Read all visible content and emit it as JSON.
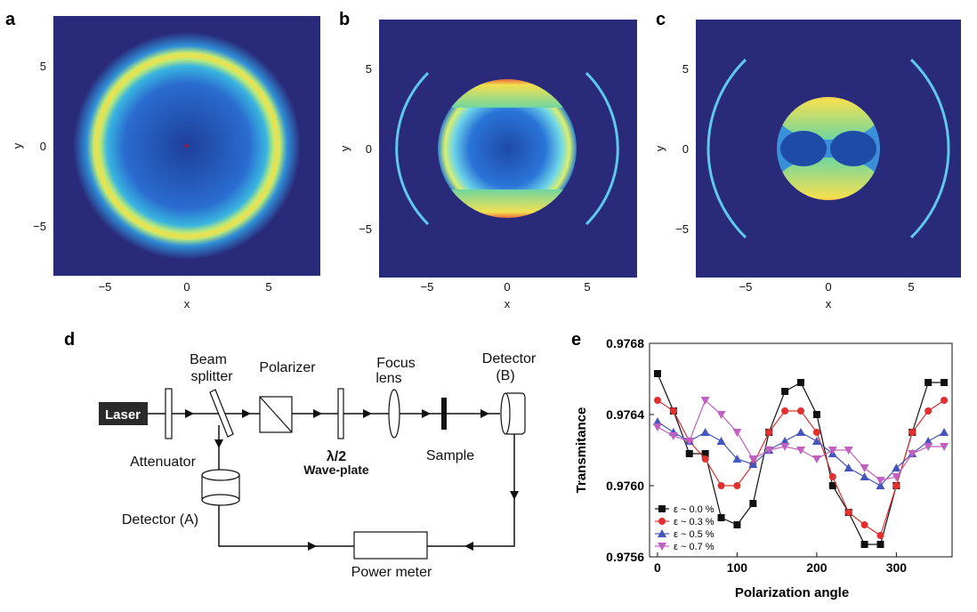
{
  "panels": {
    "a": {
      "label": "a",
      "xticks": [
        "−5",
        "0",
        "5"
      ],
      "yticks": [
        "5",
        "0",
        "−5"
      ],
      "xlabel": "x",
      "ylabel": "y"
    },
    "b": {
      "label": "b",
      "xticks": [
        "−5",
        "0",
        "5"
      ],
      "yticks": [
        "5",
        "0",
        "−5"
      ],
      "xlabel": "x",
      "ylabel": "y"
    },
    "c": {
      "label": "c",
      "xticks": [
        "−5",
        "0",
        "5"
      ],
      "yticks": [
        "5",
        "0",
        "−5"
      ],
      "xlabel": "x",
      "ylabel": "y"
    },
    "d": {
      "label": "d",
      "laser": "Laser",
      "beam_splitter_1": "Beam",
      "beam_splitter_2": "splitter",
      "polarizer": "Polarizer",
      "focus_lens_1": "Focus",
      "focus_lens_2": "lens",
      "detector_b_1": "Detector",
      "detector_b_2": "(B)",
      "attenuator": "Attenuator",
      "waveplate_1": "λ/2",
      "waveplate_2": "Wave-plate",
      "sample": "Sample",
      "detector_a": "Detector (A)",
      "power_meter": "Power meter"
    },
    "e": {
      "label": "e"
    }
  },
  "colors": {
    "field_bg": "#2a2a7a",
    "ring": "#f0e04a",
    "black_series": "#111111",
    "red_series": "#e03030",
    "blue_series": "#4455bb",
    "magenta_series": "#c060c0"
  },
  "chart_data": {
    "type": "line",
    "title": "",
    "xlabel": "Polarization angle",
    "ylabel": "Transmitance",
    "xlim": [
      -10,
      370
    ],
    "ylim": [
      0.9756,
      0.9768
    ],
    "xticks": [
      "0",
      "100",
      "200",
      "300"
    ],
    "yticks": [
      "0.9768",
      "0.9764",
      "0.9760",
      "0.9756"
    ],
    "legend_position": "bottom-left",
    "x": [
      0,
      20,
      40,
      60,
      80,
      100,
      120,
      140,
      160,
      180,
      200,
      220,
      240,
      260,
      280,
      300,
      320,
      340,
      360
    ],
    "series": [
      {
        "name": "ε ~ 0.0 %",
        "marker": "square",
        "color": "#111111",
        "values": [
          0.97663,
          0.97642,
          0.97618,
          0.97618,
          0.97582,
          0.97578,
          0.9759,
          0.9763,
          0.97653,
          0.97658,
          0.9764,
          0.976,
          0.97585,
          0.97567,
          0.97567,
          0.976,
          0.9763,
          0.97658,
          0.97658
        ]
      },
      {
        "name": "ε ~ 0.3 %",
        "marker": "circle",
        "color": "#e03030",
        "values": [
          0.97648,
          0.97642,
          0.97625,
          0.97615,
          0.976,
          0.976,
          0.97612,
          0.9763,
          0.97642,
          0.97642,
          0.9763,
          0.97605,
          0.97585,
          0.97578,
          0.97572,
          0.976,
          0.9763,
          0.97642,
          0.97648
        ]
      },
      {
        "name": "ε ~ 0.5 %",
        "marker": "triangle-up",
        "color": "#4455bb",
        "values": [
          0.97636,
          0.9763,
          0.97625,
          0.9763,
          0.97625,
          0.97615,
          0.97612,
          0.9762,
          0.97625,
          0.9763,
          0.97625,
          0.97618,
          0.9761,
          0.97605,
          0.976,
          0.9761,
          0.97618,
          0.97625,
          0.9763
        ]
      },
      {
        "name": "ε ~ 0.7 %",
        "marker": "triangle-down",
        "color": "#c060c0",
        "values": [
          0.97633,
          0.97628,
          0.97625,
          0.97648,
          0.9764,
          0.9763,
          0.97615,
          0.9762,
          0.97622,
          0.9762,
          0.97615,
          0.9762,
          0.9762,
          0.9761,
          0.97603,
          0.97605,
          0.97618,
          0.97622,
          0.97622
        ]
      }
    ]
  }
}
